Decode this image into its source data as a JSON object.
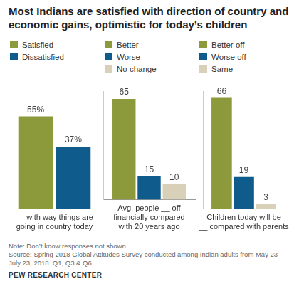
{
  "title": "Most Indians are satisfied with direction of country and economic gains, optimistic for today’s children",
  "note": "Note: Don’t know responses not shown.",
  "source": "Source: Spring 2018 Global Attitudes Survey conducted among Indian adults from May 23-July 23, 2018. Q1, Q3 & Q6.",
  "credit": "PEW RESEARCH CENTER",
  "chart_data": [
    {
      "type": "bar",
      "categories": [
        "__ with way things are going in country today"
      ],
      "series": [
        {
          "name": "Satisfied",
          "color": "#8c9a3b",
          "values": [
            55
          ],
          "value_labels": [
            "55%"
          ]
        },
        {
          "name": "Dissatisfied",
          "color": "#0f5b8c",
          "values": [
            37
          ],
          "value_labels": [
            "37%"
          ]
        }
      ],
      "ylim": [
        0,
        70
      ],
      "grid": false,
      "legend": "top-left",
      "data_labels": true,
      "tick_labels": "x"
    },
    {
      "type": "bar",
      "categories": [
        "Avg. people __ off financially compared with 20 years ago"
      ],
      "series": [
        {
          "name": "Better",
          "color": "#8c9a3b",
          "values": [
            65
          ]
        },
        {
          "name": "Worse",
          "color": "#0f5b8c",
          "values": [
            15
          ]
        },
        {
          "name": "No change",
          "color": "#d8d0b8",
          "values": [
            10
          ]
        }
      ],
      "ylim": [
        0,
        70
      ],
      "grid": false,
      "legend": "top-left",
      "data_labels": true,
      "tick_labels": "x"
    },
    {
      "type": "bar",
      "categories": [
        "Children today will be __ compared with parents"
      ],
      "series": [
        {
          "name": "Better off",
          "color": "#8c9a3b",
          "values": [
            66
          ]
        },
        {
          "name": "Worse off",
          "color": "#0f5b8c",
          "values": [
            19
          ]
        },
        {
          "name": "Same",
          "color": "#d8d0b8",
          "values": [
            3
          ]
        }
      ],
      "ylim": [
        0,
        70
      ],
      "grid": false,
      "legend": "top-left",
      "data_labels": true,
      "tick_labels": "x"
    }
  ]
}
